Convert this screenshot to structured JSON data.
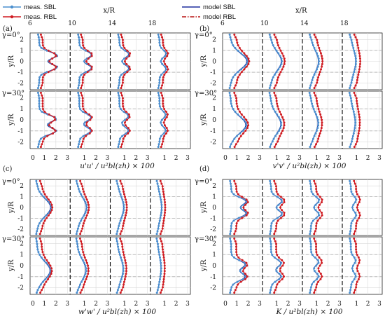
{
  "colors": {
    "meas_sbl": "#4a8fcf",
    "meas_rbl": "#d01c22",
    "model_sbl": "#1f2f9e",
    "model_rbl": "#b81414",
    "grid": "#d9d9d9",
    "turbine_line": "#000000"
  },
  "legend": {
    "meas_sbl": "meas. SBL",
    "meas_rbl": "meas. RBL",
    "model_sbl": "model SBL",
    "model_rbl": "model RBL"
  },
  "labels": {
    "xR": "x/R",
    "yR": "y/R",
    "gamma0": "γ=0°",
    "gamma30": "γ=30°",
    "panel_a": "(a)",
    "panel_b": "(b)",
    "panel_c": "(c)",
    "panel_d": "(d)",
    "xlabel_a": "u'u' / u²bl(zh) × 100",
    "xlabel_b": "v'v' / u²bl(zh) × 100",
    "xlabel_c": "w'w' / u²bl(zh) × 100",
    "xlabel_d": "K / u²bl(zh) × 100"
  },
  "ticks": {
    "top_x": [
      "6",
      "10",
      "14",
      "18"
    ],
    "y": [
      "2",
      "1",
      "0",
      "-1",
      "-2"
    ],
    "bottom_x": [
      "0",
      "1",
      "2",
      "3",
      "1",
      "2",
      "3",
      "1",
      "2",
      "3",
      "1",
      "2",
      "3"
    ]
  },
  "chart_data": {
    "type": "line",
    "downstream_positions_xR": [
      6,
      10,
      14,
      18
    ],
    "yaw_angles": [
      "γ=0°",
      "γ=30°"
    ],
    "x_axis_range_per_station": [
      0,
      3
    ],
    "y_axis_range": [
      -2.6,
      2.6
    ],
    "y_ticks": [
      -2,
      -1,
      0,
      1,
      2
    ],
    "series": [
      {
        "name": "meas. SBL",
        "style": "markers+line"
      },
      {
        "name": "meas. RBL",
        "style": "markers+line"
      },
      {
        "name": "model SBL",
        "style": "solid line"
      },
      {
        "name": "model RBL",
        "style": "dash-dot line"
      }
    ],
    "panels": [
      {
        "label": "(a)",
        "xlabel": "u'u' / u²bl(zh) × 100",
        "profiles": {
          "g0": {
            "sbl_base": 0.55,
            "rbl_base": 0.85,
            "peak": [
              1.85,
              1.3,
              1.0,
              0.7
            ],
            "shift": 0.0,
            "width": 0.55,
            "double": true
          },
          "g30": {
            "sbl_base": 0.55,
            "rbl_base": 0.85,
            "peak": [
              1.75,
              1.25,
              0.95,
              0.65
            ],
            "shift": -0.45,
            "width": 0.55,
            "double": true
          }
        }
      },
      {
        "label": "(b)",
        "xlabel": "v'v' / u²bl(zh) × 100",
        "profiles": {
          "g0": {
            "sbl_base": 0.45,
            "rbl_base": 0.95,
            "peak": [
              1.5,
              1.0,
              0.75,
              0.5
            ],
            "shift": 0.0,
            "width": 0.75,
            "double": false
          },
          "g30": {
            "sbl_base": 0.45,
            "rbl_base": 0.95,
            "peak": [
              1.4,
              0.95,
              0.7,
              0.45
            ],
            "shift": -0.45,
            "width": 0.75,
            "double": false
          }
        }
      },
      {
        "label": "(c)",
        "xlabel": "w'w' / u²bl(zh) × 100",
        "profiles": {
          "g0": {
            "sbl_base": 0.35,
            "rbl_base": 0.75,
            "peak": [
              1.25,
              0.85,
              0.6,
              0.4
            ],
            "shift": 0.0,
            "width": 0.8,
            "double": false
          },
          "g30": {
            "sbl_base": 0.35,
            "rbl_base": 0.75,
            "peak": [
              1.2,
              0.8,
              0.55,
              0.35
            ],
            "shift": -0.45,
            "width": 0.8,
            "double": false
          }
        }
      },
      {
        "label": "(d)",
        "xlabel": "K / u²bl(zh) × 100",
        "profiles": {
          "g0": {
            "sbl_base": 0.5,
            "rbl_base": 0.95,
            "peak": [
              1.6,
              1.15,
              0.85,
              0.55
            ],
            "shift": 0.0,
            "width": 0.6,
            "double": true
          },
          "g30": {
            "sbl_base": 0.5,
            "rbl_base": 0.95,
            "peak": [
              1.5,
              1.05,
              0.8,
              0.5
            ],
            "shift": -0.45,
            "width": 0.6,
            "double": true
          }
        }
      }
    ]
  }
}
